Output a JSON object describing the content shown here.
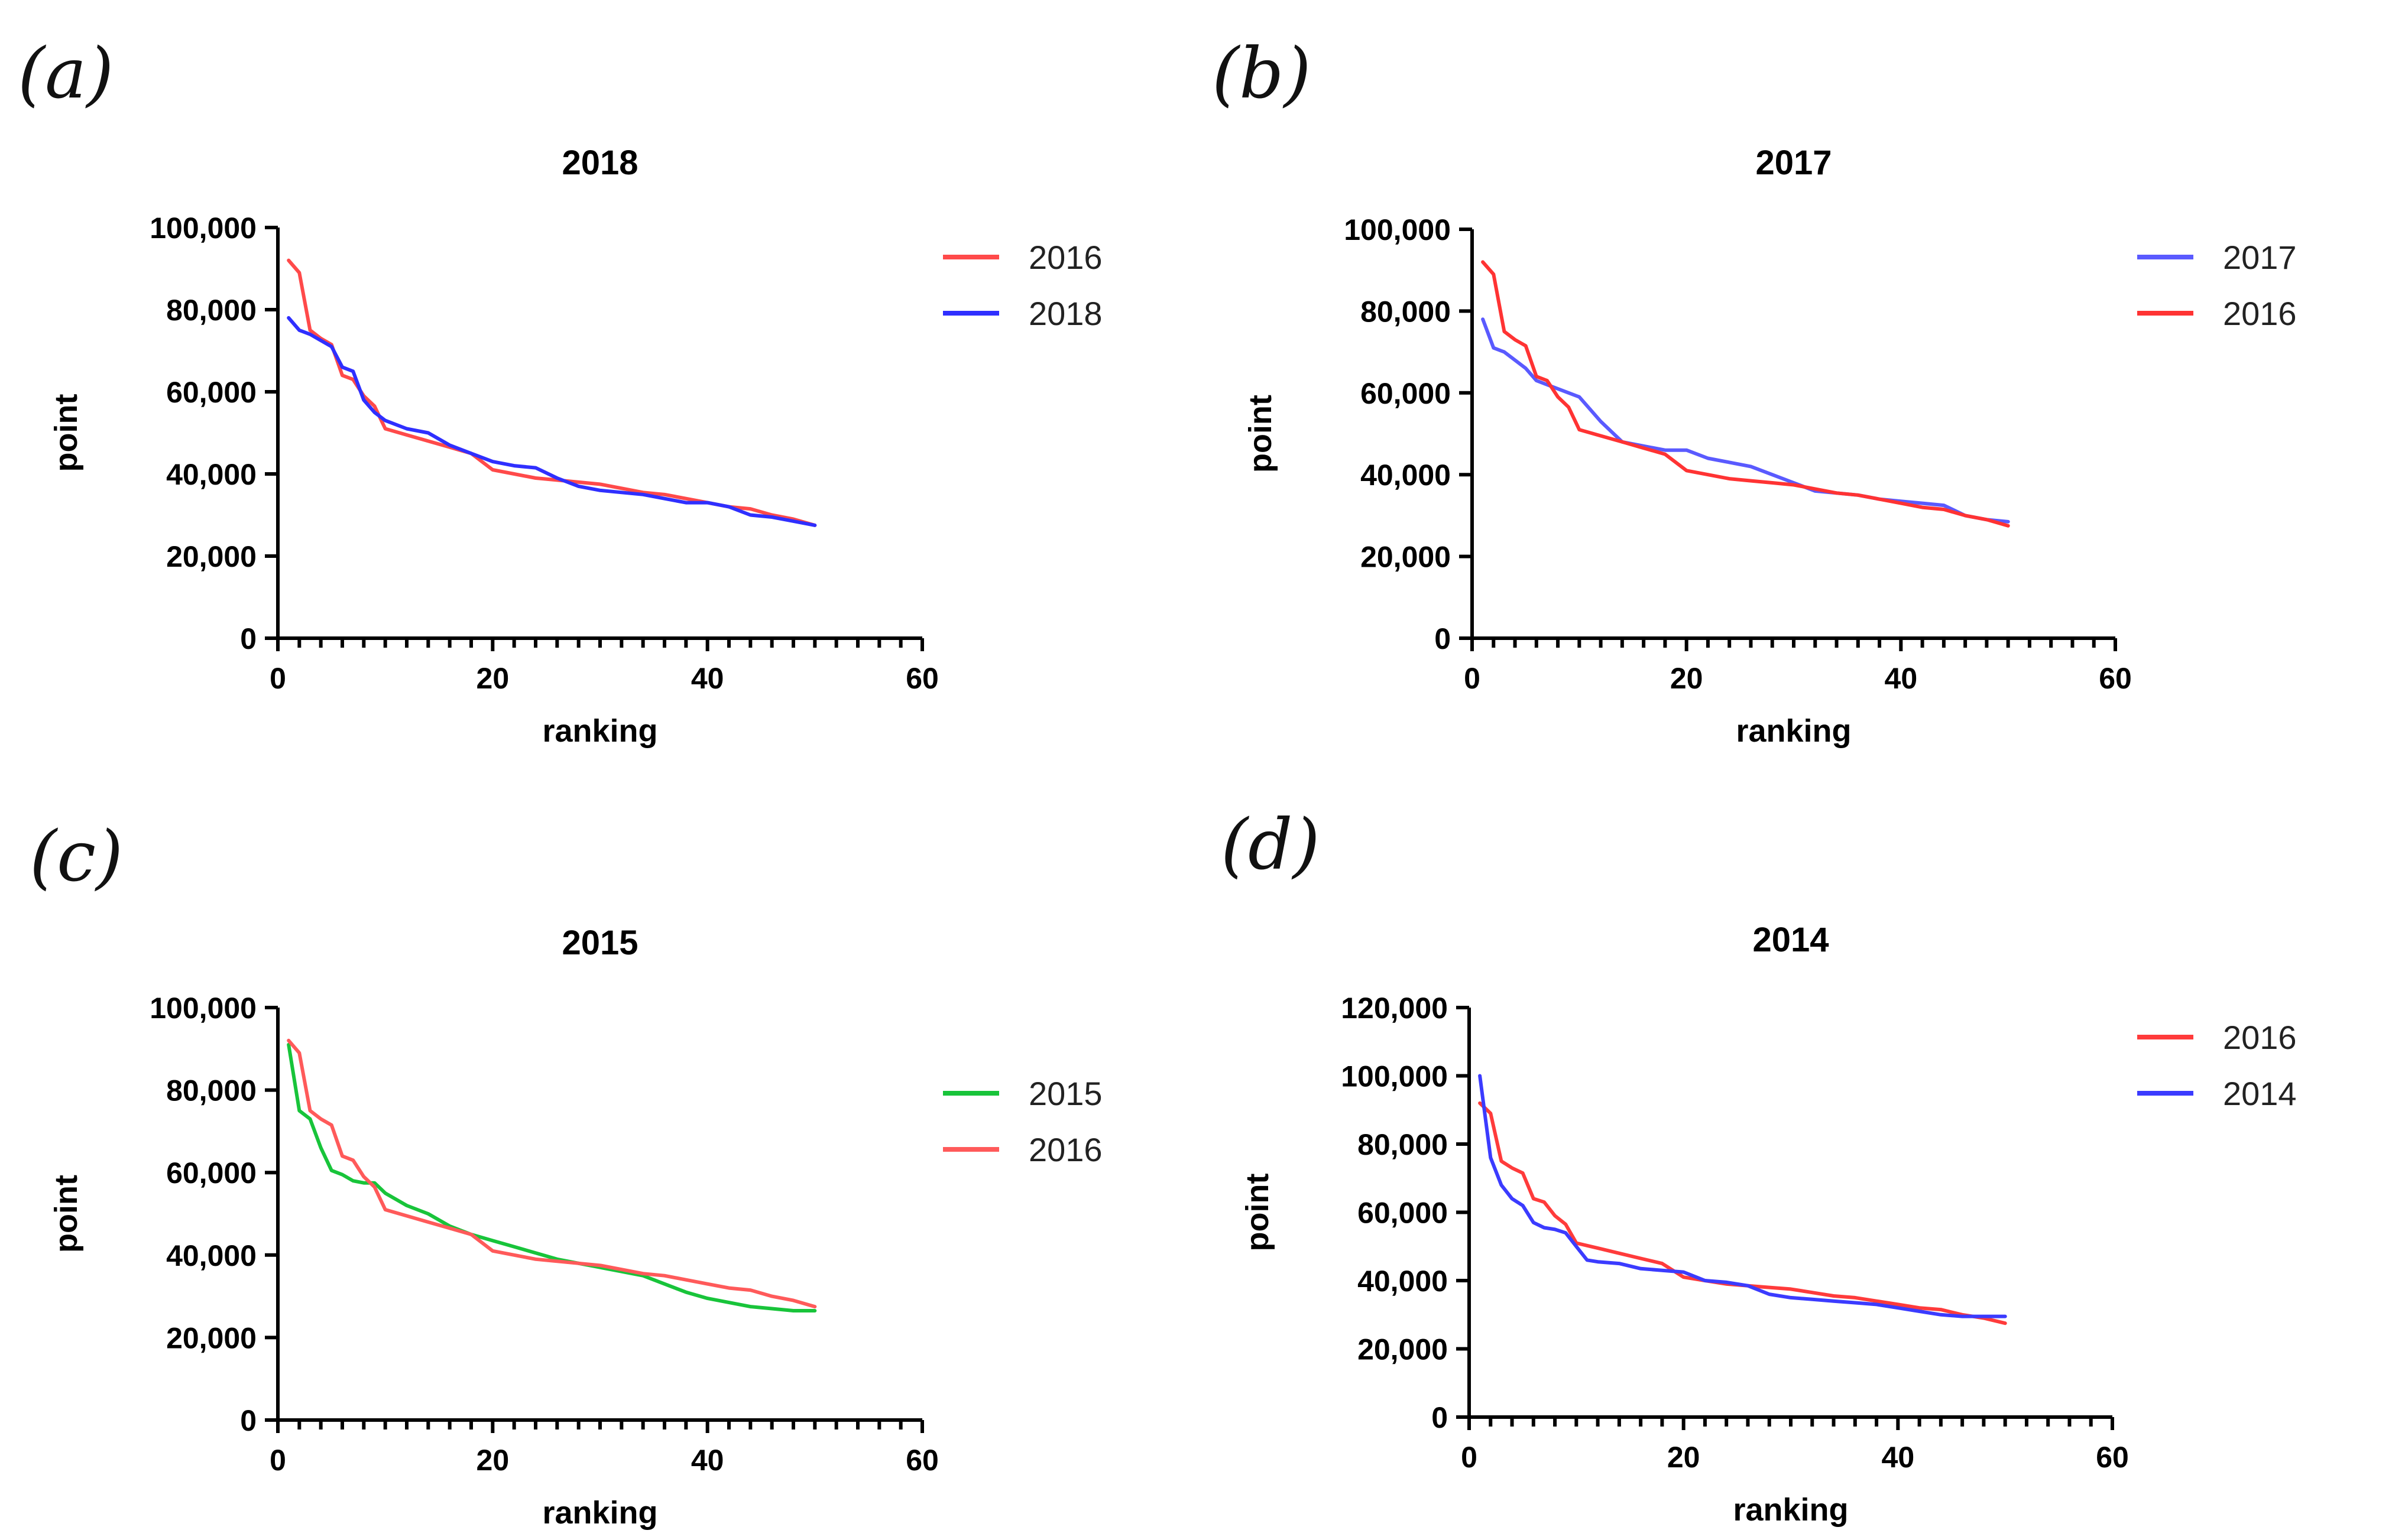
{
  "figure": {
    "panel_labels": [
      "(a)",
      "(b)",
      "(c)",
      "(d)"
    ]
  },
  "chart_data": [
    {
      "type": "line",
      "panel": "(a)",
      "title": "2018",
      "xlabel": "ranking",
      "ylabel": "point",
      "xlim": [
        0,
        60
      ],
      "ylim": [
        0,
        100000
      ],
      "xticks": [
        "0",
        "20",
        "40",
        "60"
      ],
      "yticks": [
        "0",
        "20,000",
        "40,000",
        "60,000",
        "80,000",
        "100,000"
      ],
      "legend_position": "right",
      "series": [
        {
          "name": "2016",
          "color": "#ff4a4a",
          "x": [
            1,
            2,
            3,
            4,
            5,
            6,
            7,
            8,
            9,
            10,
            12,
            14,
            16,
            18,
            20,
            22,
            24,
            26,
            28,
            30,
            32,
            34,
            36,
            38,
            40,
            42,
            44,
            46,
            48,
            50
          ],
          "values": [
            92000,
            89000,
            75000,
            73000,
            71500,
            64000,
            63000,
            59000,
            56500,
            51000,
            49500,
            48000,
            46500,
            45000,
            41000,
            40000,
            39000,
            38500,
            38000,
            37500,
            36500,
            35500,
            35000,
            34000,
            33000,
            32000,
            31500,
            30000,
            29000,
            27500
          ]
        },
        {
          "name": "2018",
          "color": "#2f2fff",
          "x": [
            1,
            2,
            3,
            4,
            5,
            6,
            7,
            8,
            9,
            10,
            12,
            14,
            16,
            18,
            20,
            22,
            24,
            26,
            28,
            30,
            32,
            34,
            36,
            38,
            40,
            42,
            44,
            46,
            48,
            50
          ],
          "values": [
            78000,
            75000,
            74000,
            72500,
            71000,
            66000,
            65000,
            58000,
            55000,
            53000,
            51000,
            50000,
            47000,
            45000,
            43000,
            42000,
            41500,
            39000,
            37000,
            36000,
            35500,
            35000,
            34000,
            33000,
            33000,
            32000,
            30000,
            29500,
            28500,
            27500
          ]
        }
      ]
    },
    {
      "type": "line",
      "panel": "(b)",
      "title": "2017",
      "xlabel": "ranking",
      "ylabel": "point",
      "xlim": [
        0,
        60
      ],
      "ylim": [
        0,
        100000
      ],
      "xticks": [
        "0",
        "20",
        "40",
        "60"
      ],
      "yticks": [
        "0",
        "20,000",
        "40,000",
        "60,000",
        "80,000",
        "100,000"
      ],
      "legend_position": "right",
      "series": [
        {
          "name": "2017",
          "color": "#5a5aff",
          "x": [
            1,
            2,
            3,
            4,
            5,
            6,
            7,
            8,
            9,
            10,
            12,
            14,
            16,
            18,
            20,
            22,
            24,
            26,
            28,
            30,
            32,
            34,
            36,
            38,
            40,
            42,
            44,
            46,
            48,
            50
          ],
          "values": [
            78000,
            71000,
            70000,
            68000,
            66000,
            63000,
            62000,
            61000,
            60000,
            59000,
            53000,
            48000,
            47000,
            46000,
            46000,
            44000,
            43000,
            42000,
            40000,
            38000,
            36000,
            35500,
            35000,
            34000,
            33500,
            33000,
            32500,
            30000,
            29000,
            28500
          ]
        },
        {
          "name": "2016",
          "color": "#ff3333",
          "x": [
            1,
            2,
            3,
            4,
            5,
            6,
            7,
            8,
            9,
            10,
            12,
            14,
            16,
            18,
            20,
            22,
            24,
            26,
            28,
            30,
            32,
            34,
            36,
            38,
            40,
            42,
            44,
            46,
            48,
            50
          ],
          "values": [
            92000,
            89000,
            75000,
            73000,
            71500,
            64000,
            63000,
            59000,
            56500,
            51000,
            49500,
            48000,
            46500,
            45000,
            41000,
            40000,
            39000,
            38500,
            38000,
            37500,
            36500,
            35500,
            35000,
            34000,
            33000,
            32000,
            31500,
            30000,
            29000,
            27500
          ]
        }
      ]
    },
    {
      "type": "line",
      "panel": "(c)",
      "title": "2015",
      "xlabel": "ranking",
      "ylabel": "point",
      "xlim": [
        0,
        60
      ],
      "ylim": [
        0,
        100000
      ],
      "xticks": [
        "0",
        "20",
        "40",
        "60"
      ],
      "yticks": [
        "0",
        "20,000",
        "40,000",
        "60,000",
        "80,000",
        "100,000"
      ],
      "legend_position": "right",
      "series": [
        {
          "name": "2015",
          "color": "#18c43a",
          "x": [
            1,
            2,
            3,
            4,
            5,
            6,
            7,
            8,
            9,
            10,
            12,
            14,
            16,
            18,
            20,
            22,
            24,
            26,
            28,
            30,
            32,
            34,
            36,
            38,
            40,
            42,
            44,
            46,
            48,
            50
          ],
          "values": [
            91000,
            75000,
            73000,
            66000,
            60500,
            59500,
            58000,
            57500,
            57500,
            55000,
            52000,
            50000,
            47000,
            45000,
            43500,
            42000,
            40500,
            39000,
            38000,
            37000,
            36000,
            35000,
            33000,
            31000,
            29500,
            28500,
            27500,
            27000,
            26500,
            26500
          ]
        },
        {
          "name": "2016",
          "color": "#ff5a5a",
          "x": [
            1,
            2,
            3,
            4,
            5,
            6,
            7,
            8,
            9,
            10,
            12,
            14,
            16,
            18,
            20,
            22,
            24,
            26,
            28,
            30,
            32,
            34,
            36,
            38,
            40,
            42,
            44,
            46,
            48,
            50
          ],
          "values": [
            92000,
            89000,
            75000,
            73000,
            71500,
            64000,
            63000,
            59000,
            56500,
            51000,
            49500,
            48000,
            46500,
            45000,
            41000,
            40000,
            39000,
            38500,
            38000,
            37500,
            36500,
            35500,
            35000,
            34000,
            33000,
            32000,
            31500,
            30000,
            29000,
            27500
          ]
        }
      ]
    },
    {
      "type": "line",
      "panel": "(d)",
      "title": "2014",
      "xlabel": "ranking",
      "ylabel": "point",
      "xlim": [
        0,
        60
      ],
      "ylim": [
        0,
        120000
      ],
      "xticks": [
        "0",
        "20",
        "40",
        "60"
      ],
      "yticks": [
        "0",
        "20,000",
        "40,000",
        "60,000",
        "80,000",
        "100,000",
        "120,000"
      ],
      "legend_position": "right",
      "series": [
        {
          "name": "2016",
          "color": "#ff3b3b",
          "x": [
            1,
            2,
            3,
            4,
            5,
            6,
            7,
            8,
            9,
            10,
            12,
            14,
            16,
            18,
            20,
            22,
            24,
            26,
            28,
            30,
            32,
            34,
            36,
            38,
            40,
            42,
            44,
            46,
            48,
            50
          ],
          "values": [
            92000,
            89000,
            75000,
            73000,
            71500,
            64000,
            63000,
            59000,
            56500,
            51000,
            49500,
            48000,
            46500,
            45000,
            41000,
            40000,
            39000,
            38500,
            38000,
            37500,
            36500,
            35500,
            35000,
            34000,
            33000,
            32000,
            31500,
            30000,
            29000,
            27500
          ]
        },
        {
          "name": "2014",
          "color": "#3b3bff",
          "x": [
            1,
            2,
            3,
            4,
            5,
            6,
            7,
            8,
            9,
            10,
            11,
            12,
            14,
            16,
            18,
            20,
            22,
            24,
            26,
            28,
            30,
            32,
            34,
            36,
            38,
            40,
            42,
            44,
            46,
            48,
            50
          ],
          "values": [
            100000,
            76000,
            68000,
            64000,
            62000,
            57000,
            55500,
            55000,
            54000,
            50000,
            46000,
            45500,
            45000,
            43500,
            43000,
            42500,
            40000,
            39500,
            38500,
            36000,
            35000,
            34500,
            34000,
            33500,
            33000,
            32000,
            31000,
            30000,
            29500,
            29500,
            29500
          ]
        }
      ]
    }
  ]
}
